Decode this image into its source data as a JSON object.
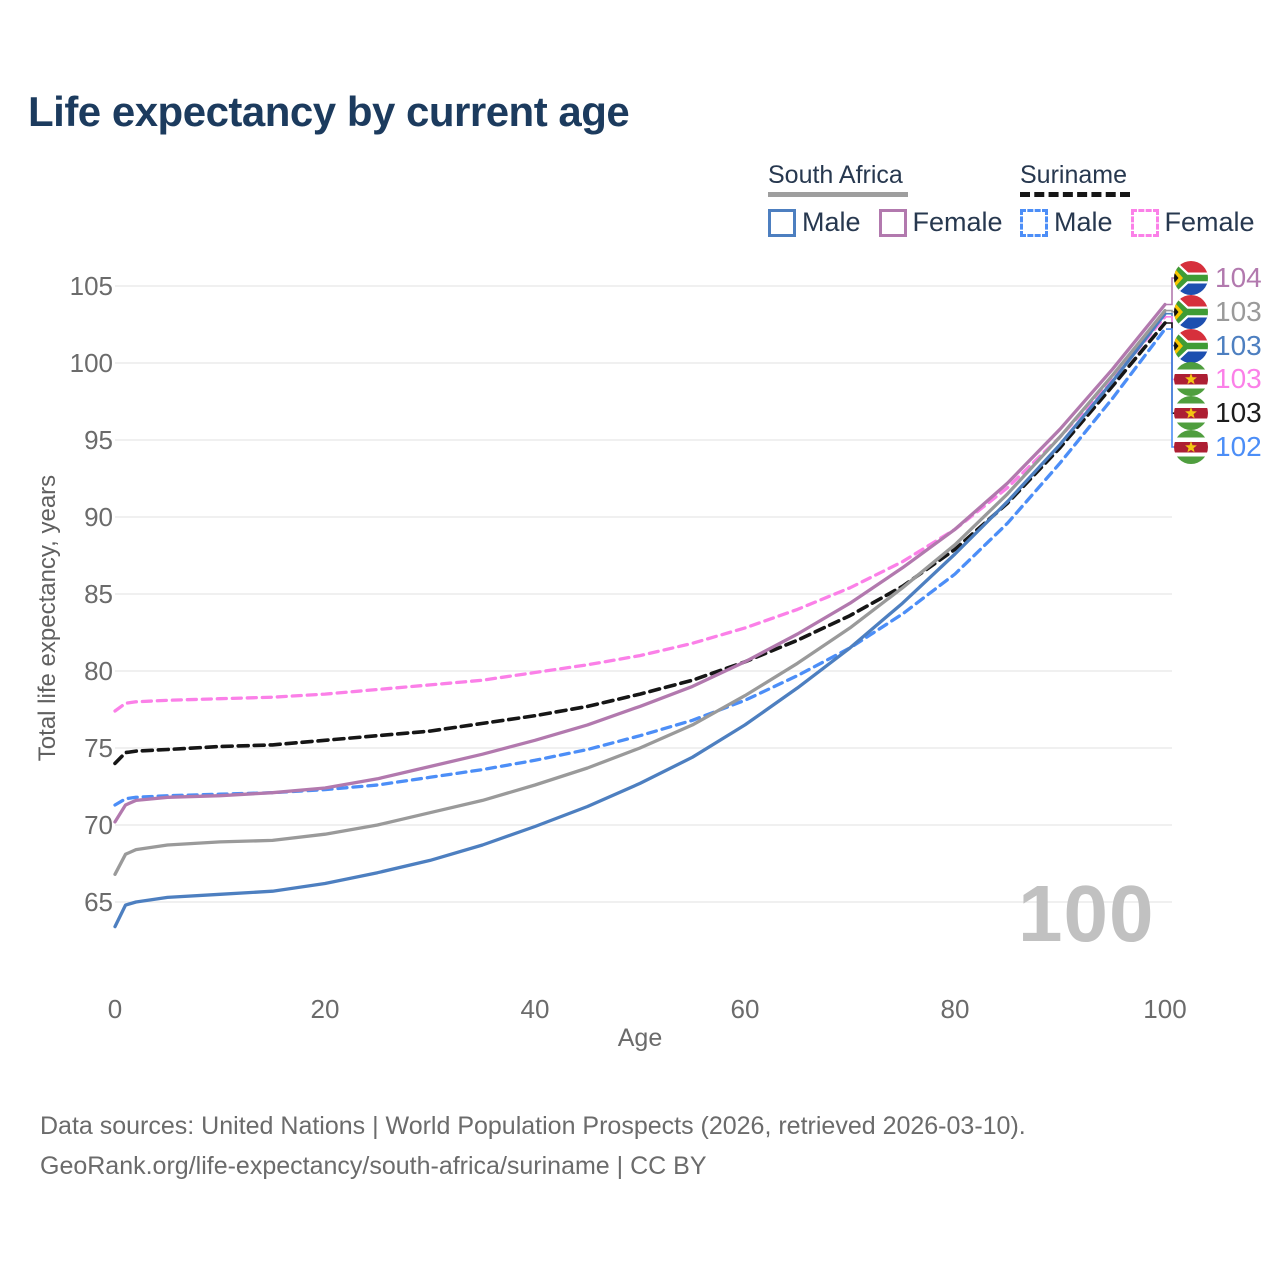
{
  "header": {
    "title": "Life expectancy by current age"
  },
  "legend": {
    "groups": [
      {
        "label": "South Africa",
        "line_style": "solid",
        "line_color": "#9e9e9e",
        "items": [
          {
            "label": "Male",
            "color": "#4d7fc0",
            "dashed": false
          },
          {
            "label": "Female",
            "color": "#b279ae",
            "dashed": false
          }
        ]
      },
      {
        "label": "Suriname",
        "line_style": "dashed",
        "line_color": "#161616",
        "items": [
          {
            "label": "Male",
            "color": "#4c8ef7",
            "dashed": true
          },
          {
            "label": "Female",
            "color": "#fb80e8",
            "dashed": true
          }
        ]
      }
    ]
  },
  "chart_data": {
    "type": "line",
    "title": "Life expectancy by current age",
    "xlabel": "Age",
    "ylabel": "Total life expectancy, years",
    "x_ticks": [
      0,
      20,
      40,
      60,
      80,
      100
    ],
    "y_ticks": [
      65,
      70,
      75,
      80,
      85,
      90,
      95,
      100,
      105
    ],
    "xlim": [
      0,
      100
    ],
    "ylim": [
      63,
      105.5
    ],
    "grid": "horizontal-only",
    "legend_position": "top-right",
    "watermark": "100",
    "x": [
      0,
      1,
      2,
      5,
      10,
      15,
      20,
      25,
      30,
      35,
      40,
      45,
      50,
      55,
      60,
      65,
      70,
      75,
      80,
      85,
      90,
      95,
      100
    ],
    "series": [
      {
        "id": "sa-female",
        "country": "South Africa",
        "sex": "Female",
        "color": "#b279ae",
        "dash": null,
        "flag": "za",
        "end_label": "104",
        "values": [
          70.2,
          71.3,
          71.6,
          71.8,
          71.9,
          72.1,
          72.4,
          73.0,
          73.8,
          74.6,
          75.5,
          76.5,
          77.7,
          79.0,
          80.6,
          82.4,
          84.4,
          86.7,
          89.2,
          92.2,
          95.7,
          99.6,
          103.8
        ]
      },
      {
        "id": "sa-total",
        "country": "South Africa",
        "sex": "Both sexes",
        "color": "#9a9a9a",
        "dash": null,
        "flag": "za",
        "end_label": "103",
        "values": [
          66.8,
          68.1,
          68.4,
          68.7,
          68.9,
          69.0,
          69.4,
          70.0,
          70.8,
          71.6,
          72.6,
          73.7,
          75.0,
          76.5,
          78.4,
          80.5,
          82.8,
          85.4,
          88.2,
          91.5,
          95.2,
          99.2,
          103.4
        ]
      },
      {
        "id": "sa-male",
        "country": "South Africa",
        "sex": "Male",
        "color": "#4d7fc0",
        "dash": null,
        "flag": "za",
        "end_label": "103",
        "values": [
          63.4,
          64.8,
          65.0,
          65.3,
          65.5,
          65.7,
          66.2,
          66.9,
          67.7,
          68.7,
          69.9,
          71.2,
          72.7,
          74.4,
          76.5,
          78.9,
          81.5,
          84.4,
          87.6,
          91.0,
          94.7,
          98.8,
          103.2
        ]
      },
      {
        "id": "suriname-female",
        "country": "Suriname",
        "sex": "Female",
        "color": "#fb80e8",
        "dash": "9,6",
        "flag": "sr",
        "end_label": "103",
        "values": [
          77.4,
          77.9,
          78.0,
          78.1,
          78.2,
          78.3,
          78.5,
          78.8,
          79.1,
          79.4,
          79.9,
          80.4,
          81.0,
          81.8,
          82.8,
          84.0,
          85.4,
          87.1,
          89.2,
          91.9,
          95.2,
          98.9,
          103.0
        ]
      },
      {
        "id": "suriname-total",
        "country": "Suriname",
        "sex": "Both sexes",
        "color": "#161616",
        "dash": "10,6",
        "flag": "sr",
        "end_label": "103",
        "values": [
          74.0,
          74.7,
          74.8,
          74.9,
          75.1,
          75.2,
          75.5,
          75.8,
          76.1,
          76.6,
          77.1,
          77.7,
          78.5,
          79.4,
          80.6,
          82.0,
          83.6,
          85.5,
          87.9,
          90.9,
          94.5,
          98.5,
          102.6
        ]
      },
      {
        "id": "suriname-male",
        "country": "Suriname",
        "sex": "Male",
        "color": "#4c8ef7",
        "dash": "9,6",
        "flag": "sr",
        "end_label": "102",
        "values": [
          71.3,
          71.7,
          71.8,
          71.9,
          72.0,
          72.1,
          72.3,
          72.6,
          73.1,
          73.6,
          74.2,
          74.9,
          75.8,
          76.8,
          78.1,
          79.7,
          81.5,
          83.7,
          86.3,
          89.6,
          93.5,
          97.7,
          102.2
        ]
      }
    ]
  },
  "footer": {
    "line1": "Data sources: United Nations | World Population Prospects (2026, retrieved 2026-03-10).",
    "line2": "GeoRank.org/life-expectancy/south-africa/suriname | CC BY"
  }
}
